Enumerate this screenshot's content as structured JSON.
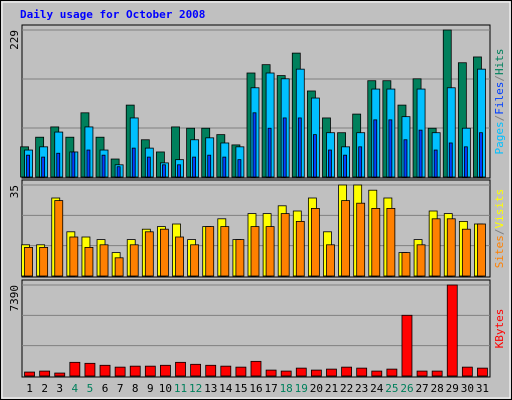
{
  "chart_data": [
    {
      "type": "bar",
      "title": "Daily usage for October 2008",
      "legend_separator": "/",
      "ylim": [
        0,
        229
      ],
      "yticks": [
        229
      ],
      "series": [
        {
          "name": "Pages",
          "color": "#00c0ff",
          "values": [
            42,
            47,
            70,
            39,
            78,
            42,
            19,
            92,
            45,
            22,
            27,
            58,
            61,
            53,
            47,
            139,
            162,
            153,
            168,
            123,
            69,
            47,
            69,
            137,
            137,
            94,
            137,
            69,
            139,
            76,
            168
          ]
        },
        {
          "name": "Files",
          "color": "#0040ff",
          "values": [
            34,
            31,
            37,
            39,
            42,
            34,
            16,
            45,
            31,
            19,
            19,
            31,
            34,
            31,
            27,
            100,
            76,
            92,
            92,
            66,
            42,
            34,
            47,
            89,
            89,
            58,
            73,
            42,
            53,
            47,
            69
          ]
        },
        {
          "name": "Hits",
          "color": "#00805c",
          "values": [
            47,
            62,
            78,
            62,
            100,
            62,
            28,
            112,
            58,
            39,
            78,
            76,
            76,
            66,
            50,
            162,
            175,
            158,
            193,
            134,
            92,
            69,
            98,
            150,
            150,
            112,
            153,
            76,
            229,
            178,
            187
          ]
        }
      ]
    },
    {
      "type": "bar",
      "legend_separator": "/",
      "ylim": [
        0,
        35
      ],
      "yticks": [
        35
      ],
      "series": [
        {
          "name": "Sites",
          "color": "#ff8000",
          "values": [
            11,
            11,
            29,
            15,
            11,
            12,
            7,
            12,
            17,
            18,
            15,
            12,
            19,
            19,
            14,
            19,
            19,
            24,
            21,
            26,
            12,
            29,
            28,
            26,
            26,
            9,
            12,
            22,
            22,
            18,
            20
          ]
        },
        {
          "name": "Visits",
          "color": "#ffff00",
          "values": [
            12,
            12,
            30,
            17,
            15,
            14,
            9,
            14,
            18,
            19,
            20,
            14,
            19,
            22,
            14,
            24,
            24,
            27,
            25,
            30,
            17,
            35,
            35,
            33,
            30,
            9,
            14,
            25,
            24,
            21,
            20
          ]
        }
      ]
    },
    {
      "type": "bar",
      "ylim": [
        0,
        7390
      ],
      "yticks": [
        7390
      ],
      "categories": [
        "1",
        "2",
        "3",
        "4",
        "5",
        "6",
        "7",
        "8",
        "9",
        "10",
        "11",
        "12",
        "13",
        "14",
        "15",
        "16",
        "17",
        "18",
        "19",
        "20",
        "21",
        "22",
        "23",
        "24",
        "25",
        "26",
        "27",
        "28",
        "29",
        "30",
        "31"
      ],
      "category_colors": [
        "#000000",
        "#000000",
        "#000000",
        "#00805c",
        "#00805c",
        "#000000",
        "#000000",
        "#000000",
        "#000000",
        "#000000",
        "#00805c",
        "#00805c",
        "#000000",
        "#000000",
        "#000000",
        "#000000",
        "#000000",
        "#00805c",
        "#00805c",
        "#000000",
        "#000000",
        "#000000",
        "#000000",
        "#000000",
        "#00805c",
        "#00805c",
        "#000000",
        "#000000",
        "#000000",
        "#000000",
        "#000000"
      ],
      "series": [
        {
          "name": "KBytes",
          "color": "#ff0000",
          "values": [
            320,
            400,
            240,
            1110,
            1030,
            870,
            720,
            800,
            800,
            870,
            1110,
            950,
            870,
            800,
            720,
            1190,
            480,
            400,
            640,
            480,
            560,
            720,
            640,
            400,
            560,
            4930,
            400,
            400,
            7390,
            720,
            640
          ]
        }
      ]
    }
  ]
}
